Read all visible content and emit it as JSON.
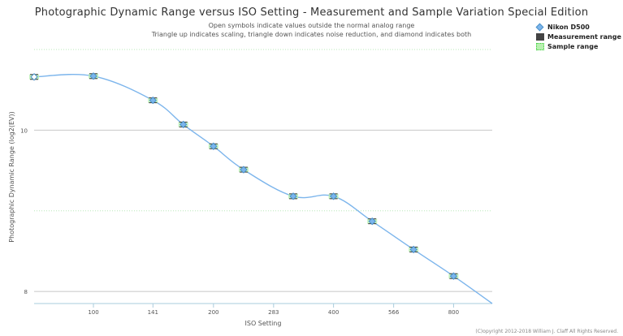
{
  "title": "Photographic Dynamic Range versus ISO Setting - Measurement and Sample Variation Special Edition",
  "subtitle_line1": "Open symbols indicate values outside the normal analog range",
  "subtitle_line2": "Triangle up indicates scaling, triangle down indicates noise reduction, and diamond indicates both",
  "legend": {
    "items": [
      {
        "label": "Nikon D500",
        "marker": "diamond-icon",
        "color": "#7cb5ec"
      },
      {
        "label": "Measurement range",
        "marker": "dark-square-icon",
        "color": "#444444"
      },
      {
        "label": "Sample range",
        "marker": "green-square-icon",
        "color": "#b8f0b0"
      }
    ]
  },
  "credits": "(C)opyright 2012-2018 William J. Claff All Rights Reserved.",
  "chart_data": {
    "type": "line",
    "title": "Photographic Dynamic Range versus ISO Setting - Measurement and Sample Variation Special Edition",
    "xlabel": "ISO Setting",
    "ylabel": "Photographic Dynamic Range (log2(EV))",
    "x_scale": "log2",
    "xlim": [
      71,
      1000
    ],
    "ylim": [
      7.85,
      10.99
    ],
    "x_ticks": [
      100,
      141,
      200,
      283,
      400,
      566,
      800
    ],
    "x_tick_labels": [
      "100",
      "141",
      "200",
      "283",
      "400",
      "566",
      "800"
    ],
    "y_ticks": [
      8,
      10
    ],
    "y_tick_labels": [
      "8",
      "10"
    ],
    "grid": true,
    "legend_position": "top-right",
    "series": [
      {
        "name": "Nikon D500",
        "color": "#7cb5ec",
        "x": [
          71,
          100,
          141,
          168,
          200,
          238,
          317,
          400,
          500,
          635,
          800,
          1000
        ],
        "y": [
          10.66,
          10.67,
          10.37,
          10.07,
          9.8,
          9.51,
          9.18,
          9.18,
          8.87,
          8.52,
          8.19,
          7.85
        ],
        "open": [
          true,
          false,
          false,
          false,
          false,
          false,
          false,
          false,
          false,
          false,
          false,
          false
        ]
      }
    ]
  }
}
